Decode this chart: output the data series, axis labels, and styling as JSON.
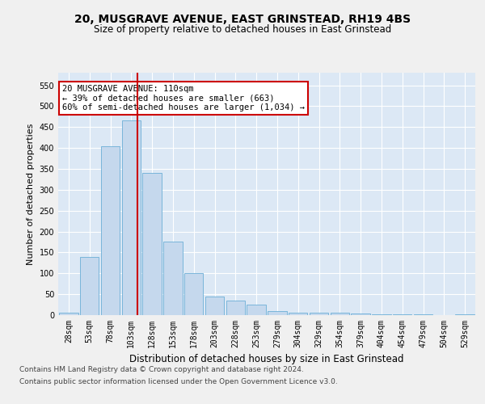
{
  "title": "20, MUSGRAVE AVENUE, EAST GRINSTEAD, RH19 4BS",
  "subtitle": "Size of property relative to detached houses in East Grinstead",
  "xlabel": "Distribution of detached houses by size in East Grinstead",
  "ylabel": "Number of detached properties",
  "bar_labels": [
    "28sqm",
    "53sqm",
    "78sqm",
    "103sqm",
    "128sqm",
    "153sqm",
    "178sqm",
    "203sqm",
    "228sqm",
    "253sqm",
    "279sqm",
    "304sqm",
    "329sqm",
    "354sqm",
    "379sqm",
    "404sqm",
    "454sqm",
    "479sqm",
    "504sqm",
    "529sqm"
  ],
  "bar_heights": [
    5,
    140,
    405,
    465,
    340,
    175,
    100,
    45,
    35,
    25,
    10,
    5,
    5,
    5,
    3,
    2,
    1,
    1,
    0,
    2
  ],
  "bar_color": "#c5d8ed",
  "bar_edgecolor": "#6baed6",
  "background_color": "#dce8f5",
  "grid_color": "#ffffff",
  "vline_color": "#cc0000",
  "vline_pos": 3.28,
  "annotation_text": "20 MUSGRAVE AVENUE: 110sqm\n← 39% of detached houses are smaller (663)\n60% of semi-detached houses are larger (1,034) →",
  "annotation_box_color": "#ffffff",
  "annotation_box_edgecolor": "#cc0000",
  "ylim": [
    0,
    580
  ],
  "yticks": [
    0,
    50,
    100,
    150,
    200,
    250,
    300,
    350,
    400,
    450,
    500,
    550
  ],
  "footer_line1": "Contains HM Land Registry data © Crown copyright and database right 2024.",
  "footer_line2": "Contains public sector information licensed under the Open Government Licence v3.0.",
  "fig_bg": "#f0f0f0",
  "title_fontsize": 10,
  "subtitle_fontsize": 8.5,
  "ylabel_fontsize": 8,
  "xlabel_fontsize": 8.5,
  "tick_fontsize": 7,
  "annot_fontsize": 7.5,
  "footer_fontsize": 6.5
}
